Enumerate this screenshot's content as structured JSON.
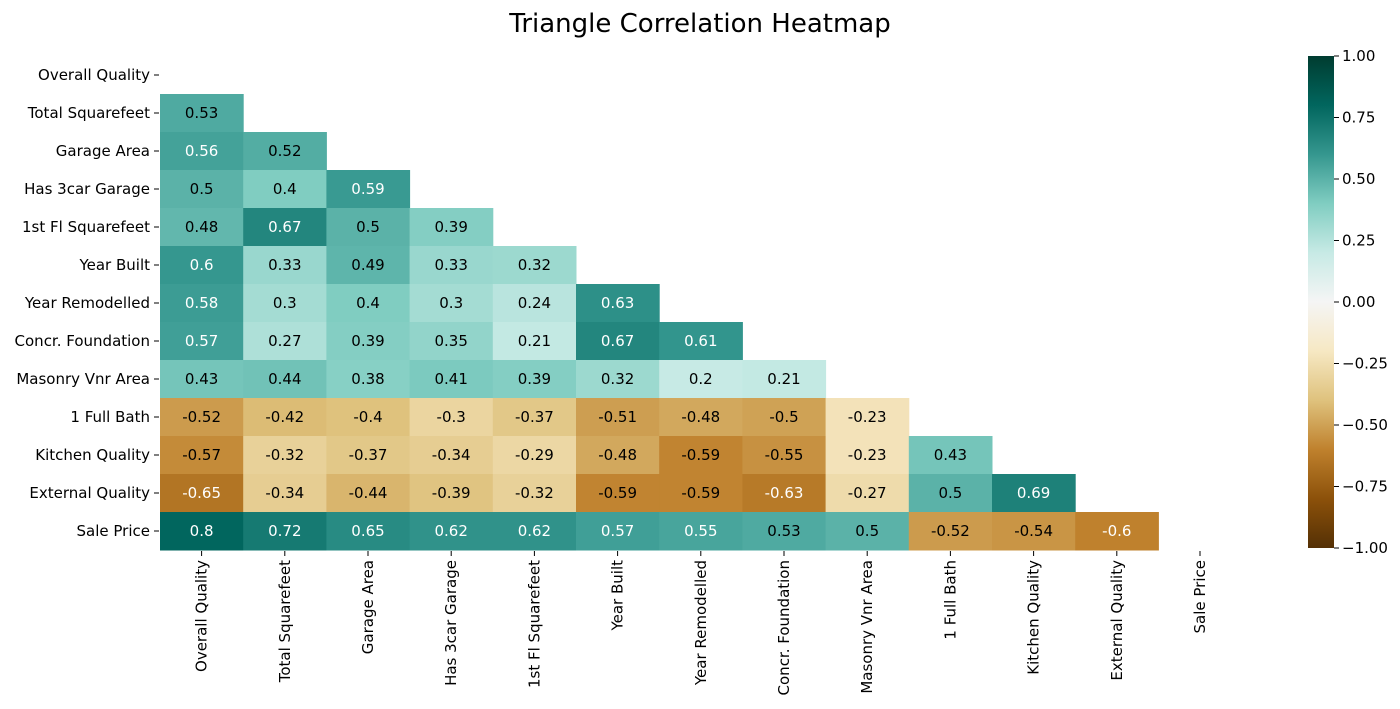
{
  "chart_data": {
    "type": "heatmap",
    "title": "Triangle Correlation Heatmap",
    "mask": "upper-triangle-and-diagonal",
    "labels": [
      "Overall Quality",
      "Total Squarefeet",
      "Garage Area",
      "Has 3car Garage",
      "1st Fl Squarefeet",
      "Year Built",
      "Year Remodelled",
      "Concr. Foundation",
      "Masonry Vnr Area",
      "1 Full Bath",
      "Kitchen Quality",
      "External Quality",
      "Sale Price"
    ],
    "values": [
      [],
      [
        0.53
      ],
      [
        0.56,
        0.52
      ],
      [
        0.5,
        0.4,
        0.59
      ],
      [
        0.48,
        0.67,
        0.5,
        0.39
      ],
      [
        0.6,
        0.33,
        0.49,
        0.33,
        0.32
      ],
      [
        0.58,
        0.3,
        0.4,
        0.3,
        0.24,
        0.63
      ],
      [
        0.57,
        0.27,
        0.39,
        0.35,
        0.21,
        0.67,
        0.61
      ],
      [
        0.43,
        0.44,
        0.38,
        0.41,
        0.39,
        0.32,
        0.2,
        0.21
      ],
      [
        -0.52,
        -0.42,
        -0.4,
        -0.3,
        -0.37,
        -0.51,
        -0.48,
        -0.5,
        -0.23
      ],
      [
        -0.57,
        -0.32,
        -0.37,
        -0.34,
        -0.29,
        -0.48,
        -0.59,
        -0.55,
        -0.23,
        0.43
      ],
      [
        -0.65,
        -0.34,
        -0.44,
        -0.39,
        -0.32,
        -0.59,
        -0.59,
        -0.63,
        -0.27,
        0.5,
        0.69
      ],
      [
        0.8,
        0.72,
        0.65,
        0.62,
        0.62,
        0.57,
        0.55,
        0.53,
        0.5,
        -0.52,
        -0.54,
        -0.6
      ]
    ],
    "vmin": -1,
    "vmax": 1,
    "colormap": "BrBG",
    "colorbar": {
      "ticks": [
        1.0,
        0.75,
        0.5,
        0.25,
        0.0,
        -0.25,
        -0.5,
        -0.75,
        -1.0
      ],
      "tick_labels": [
        "1.00",
        "0.75",
        "0.50",
        "0.25",
        "0.00",
        "−0.25",
        "−0.50",
        "−0.75",
        "−1.00"
      ],
      "colors": [
        "#543005",
        "#8c510a",
        "#bf812d",
        "#dfc27d",
        "#f6e8c3",
        "#f5f5f5",
        "#c7eae5",
        "#80cdc1",
        "#35978f",
        "#01665e",
        "#003c30"
      ]
    }
  }
}
